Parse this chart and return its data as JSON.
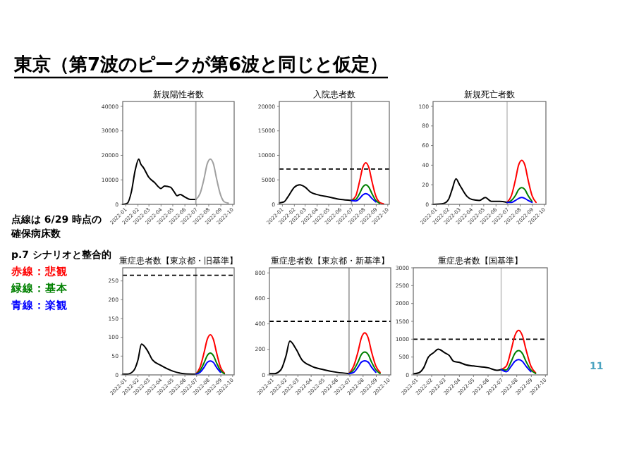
{
  "chart_data": [
    {
      "type": "other",
      "title": "東京（第7波のピークが第6波と同じと仮定）",
      "annotations": [
        "点線は 6/29 時点の",
        "確保病床数",
        "p.7 シナリオと整合的",
        "赤線：悲観",
        "緑線：基本",
        "青線：楽観",
        "11"
      ],
      "colors": [
        "#000000",
        "#000000",
        "#000000",
        "#ff0000",
        "#008000",
        "#0000ff",
        "#4aa3c0"
      ]
    },
    {
      "type": "line",
      "title": "新規陽性者数",
      "xlim": [
        "2021-12-24",
        "2022-10-05"
      ],
      "xticks": [
        "2022-01",
        "2022-02",
        "2022-03",
        "2022-04",
        "2022-05",
        "2022-06",
        "2022-07",
        "2022-08",
        "2022-09",
        "2022-10"
      ],
      "ylim": [
        0,
        42000
      ],
      "yticks": [
        0,
        10000,
        20000,
        30000,
        40000
      ],
      "ref_lines": [
        {
          "axis": "x",
          "value": "2022-06-29",
          "color": "#a0a0a0"
        }
      ],
      "series": [
        {
          "color": "#000000",
          "x": [
            "2021-12-24",
            "2022-01-05",
            "2022-01-15",
            "2022-01-25",
            "2022-02-03",
            "2022-02-08",
            "2022-02-15",
            "2022-03-01",
            "2022-03-15",
            "2022-04-01",
            "2022-04-10",
            "2022-04-25",
            "2022-05-05",
            "2022-05-12",
            "2022-05-20",
            "2022-06-01",
            "2022-06-15",
            "2022-06-29"
          ],
          "values": [
            0,
            500,
            5000,
            14000,
            18500,
            16500,
            15000,
            11000,
            9000,
            6500,
            7500,
            7000,
            5000,
            3500,
            4000,
            3000,
            2000,
            2000
          ]
        },
        {
          "color": "#a0a0a0",
          "x": [
            "2022-06-29",
            "2022-07-10",
            "2022-07-20",
            "2022-07-28",
            "2022-08-05",
            "2022-08-13",
            "2022-08-21",
            "2022-08-31",
            "2022-09-10",
            "2022-09-20"
          ],
          "values": [
            2000,
            4500,
            10500,
            16500,
            18500,
            16500,
            10500,
            4000,
            1000,
            500
          ]
        }
      ]
    },
    {
      "type": "line",
      "title": "入院患者数",
      "xlim": [
        "2021-12-24",
        "2022-10-05"
      ],
      "xticks": [
        "2022-01",
        "2022-02",
        "2022-03",
        "2022-04",
        "2022-05",
        "2022-06",
        "2022-07",
        "2022-08",
        "2022-09",
        "2022-10"
      ],
      "ylim": [
        0,
        21000
      ],
      "yticks": [
        0,
        5000,
        10000,
        15000,
        20000
      ],
      "ref_lines": [
        {
          "axis": "x",
          "value": "2022-06-29",
          "color": "#a0a0a0"
        },
        {
          "axis": "y",
          "value": 7200,
          "color": "#000000",
          "line_style": "dashed"
        }
      ],
      "series": [
        {
          "color": "#000000",
          "x": [
            "2021-12-24",
            "2022-01-05",
            "2022-01-15",
            "2022-02-01",
            "2022-02-15",
            "2022-03-01",
            "2022-03-15",
            "2022-04-01",
            "2022-05-01",
            "2022-06-01",
            "2022-06-29"
          ],
          "values": [
            300,
            500,
            1500,
            3500,
            4000,
            3500,
            2500,
            2000,
            1500,
            1000,
            800
          ]
        },
        {
          "color": "#ff0000",
          "x": [
            "2022-06-29",
            "2022-07-10",
            "2022-07-20",
            "2022-07-28",
            "2022-08-05",
            "2022-08-13",
            "2022-08-21",
            "2022-08-31",
            "2022-09-10",
            "2022-09-20"
          ],
          "values": [
            800,
            1700,
            4700,
            7500,
            8500,
            7500,
            4700,
            1700,
            400,
            100
          ]
        },
        {
          "color": "#008000",
          "x": [
            "2022-06-29",
            "2022-07-10",
            "2022-07-20",
            "2022-07-28",
            "2022-08-05",
            "2022-08-13",
            "2022-08-21",
            "2022-08-31",
            "2022-09-10"
          ],
          "values": [
            800,
            1000,
            2200,
            3500,
            4000,
            3500,
            2200,
            800,
            200
          ]
        },
        {
          "color": "#0000ff",
          "x": [
            "2022-06-29",
            "2022-07-10",
            "2022-07-20",
            "2022-07-28",
            "2022-08-05",
            "2022-08-13",
            "2022-08-21",
            "2022-08-31"
          ],
          "values": [
            800,
            700,
            1200,
            1900,
            2200,
            1900,
            1200,
            500
          ]
        }
      ]
    },
    {
      "type": "line",
      "title": "新規死亡者数",
      "xlim": [
        "2021-12-24",
        "2022-10-05"
      ],
      "xticks": [
        "2022-01",
        "2022-02",
        "2022-03",
        "2022-04",
        "2022-05",
        "2022-06",
        "2022-07",
        "2022-08",
        "2022-09",
        "2022-10"
      ],
      "ylim": [
        0,
        105
      ],
      "yticks": [
        0,
        20,
        40,
        60,
        80,
        100
      ],
      "ref_lines": [
        {
          "axis": "x",
          "value": "2022-06-29",
          "color": "#c8c8c8"
        }
      ],
      "series": [
        {
          "color": "#000000",
          "x": [
            "2021-12-24",
            "2022-01-20",
            "2022-02-01",
            "2022-02-10",
            "2022-02-20",
            "2022-03-01",
            "2022-03-20",
            "2022-04-01",
            "2022-04-20",
            "2022-05-05",
            "2022-05-20",
            "2022-06-10",
            "2022-06-29"
          ],
          "values": [
            0,
            1,
            5,
            15,
            26,
            20,
            8,
            5,
            4,
            7,
            3,
            3,
            2
          ]
        },
        {
          "color": "#ff0000",
          "x": [
            "2022-06-29",
            "2022-07-10",
            "2022-07-20",
            "2022-07-28",
            "2022-08-05",
            "2022-08-13",
            "2022-08-21",
            "2022-08-31",
            "2022-09-10"
          ],
          "values": [
            2,
            9,
            25,
            40,
            45,
            40,
            25,
            9,
            2
          ]
        },
        {
          "color": "#008000",
          "x": [
            "2022-06-29",
            "2022-07-10",
            "2022-07-20",
            "2022-07-28",
            "2022-08-05",
            "2022-08-13",
            "2022-08-21",
            "2022-08-31"
          ],
          "values": [
            2,
            4,
            9,
            15,
            17,
            15,
            9,
            3
          ]
        },
        {
          "color": "#0000ff",
          "x": [
            "2022-06-29",
            "2022-07-10",
            "2022-07-20",
            "2022-07-28",
            "2022-08-05",
            "2022-08-13",
            "2022-08-21",
            "2022-08-31"
          ],
          "values": [
            2,
            2,
            4,
            6,
            7,
            6,
            4,
            2
          ]
        }
      ]
    },
    {
      "type": "line",
      "title": "重症患者数【東京都・旧基準】",
      "xlim": [
        "2021-12-24",
        "2022-10-05"
      ],
      "xticks": [
        "2022-01",
        "2022-02",
        "2022-03",
        "2022-04",
        "2022-05",
        "2022-06",
        "2022-07",
        "2022-08",
        "2022-09",
        "2022-10"
      ],
      "ylim": [
        0,
        285
      ],
      "yticks": [
        0,
        50,
        100,
        150,
        200,
        250
      ],
      "ref_lines": [
        {
          "axis": "x",
          "value": "2022-06-29",
          "color": "#a0a0a0"
        },
        {
          "axis": "y",
          "value": 265,
          "color": "#000000",
          "line_style": "dashed"
        }
      ],
      "series": [
        {
          "color": "#000000",
          "x": [
            "2021-12-24",
            "2022-01-05",
            "2022-01-20",
            "2022-02-01",
            "2022-02-10",
            "2022-02-25",
            "2022-03-10",
            "2022-04-01",
            "2022-05-01",
            "2022-06-01",
            "2022-06-29"
          ],
          "values": [
            2,
            2,
            10,
            40,
            82,
            65,
            40,
            25,
            10,
            3,
            2
          ]
        },
        {
          "color": "#ff0000",
          "x": [
            "2022-06-29",
            "2022-07-10",
            "2022-07-20",
            "2022-07-28",
            "2022-08-05",
            "2022-08-13",
            "2022-08-21",
            "2022-08-31",
            "2022-09-10"
          ],
          "values": [
            2,
            21,
            59,
            94,
            107,
            94,
            59,
            21,
            5
          ]
        },
        {
          "color": "#008000",
          "x": [
            "2022-06-29",
            "2022-07-10",
            "2022-07-20",
            "2022-07-28",
            "2022-08-05",
            "2022-08-13",
            "2022-08-21",
            "2022-08-31",
            "2022-09-10"
          ],
          "values": [
            2,
            12,
            32,
            51,
            58,
            51,
            32,
            12,
            3
          ]
        },
        {
          "color": "#0000ff",
          "x": [
            "2022-06-29",
            "2022-07-10",
            "2022-07-20",
            "2022-07-28",
            "2022-08-05",
            "2022-08-13",
            "2022-08-21",
            "2022-08-31"
          ],
          "values": [
            2,
            7,
            20,
            33,
            37,
            33,
            20,
            7
          ]
        }
      ]
    },
    {
      "type": "line",
      "title": "重症患者数【東京都・新基準】",
      "xlim": [
        "2021-12-24",
        "2022-10-05"
      ],
      "xticks": [
        "2022-01",
        "2022-02",
        "2022-03",
        "2022-04",
        "2022-05",
        "2022-06",
        "2022-07",
        "2022-08",
        "2022-09",
        "2022-10"
      ],
      "ylim": [
        0,
        840
      ],
      "yticks": [
        0,
        200,
        400,
        600,
        800
      ],
      "ref_lines": [
        {
          "axis": "x",
          "value": "2022-06-29",
          "color": "#a0a0a0"
        },
        {
          "axis": "y",
          "value": 420,
          "color": "#000000",
          "line_style": "dashed"
        }
      ],
      "series": [
        {
          "color": "#000000",
          "x": [
            "2021-12-24",
            "2022-01-05",
            "2022-01-20",
            "2022-02-01",
            "2022-02-10",
            "2022-02-25",
            "2022-03-10",
            "2022-04-01",
            "2022-05-01",
            "2022-06-01",
            "2022-06-29"
          ],
          "values": [
            10,
            10,
            40,
            150,
            265,
            200,
            120,
            70,
            40,
            20,
            10
          ]
        },
        {
          "color": "#ff0000",
          "x": [
            "2022-06-29",
            "2022-07-10",
            "2022-07-20",
            "2022-07-28",
            "2022-08-05",
            "2022-08-13",
            "2022-08-21",
            "2022-08-31",
            "2022-09-10"
          ],
          "values": [
            10,
            70,
            180,
            290,
            330,
            290,
            180,
            70,
            20
          ]
        },
        {
          "color": "#008000",
          "x": [
            "2022-06-29",
            "2022-07-10",
            "2022-07-20",
            "2022-07-28",
            "2022-08-05",
            "2022-08-13",
            "2022-08-21",
            "2022-08-31",
            "2022-09-10"
          ],
          "values": [
            10,
            40,
            100,
            160,
            180,
            160,
            100,
            40,
            10
          ]
        },
        {
          "color": "#0000ff",
          "x": [
            "2022-06-29",
            "2022-07-10",
            "2022-07-20",
            "2022-07-28",
            "2022-08-05",
            "2022-08-13",
            "2022-08-21",
            "2022-08-31"
          ],
          "values": [
            10,
            20,
            60,
            100,
            110,
            100,
            60,
            20
          ]
        }
      ]
    },
    {
      "type": "line",
      "title": "重症患者数【国基準】",
      "xlim": [
        "2021-12-24",
        "2022-10-05"
      ],
      "xticks": [
        "2022-01",
        "2022-02",
        "2022-03",
        "2022-04",
        "2022-05",
        "2022-06",
        "2022-07",
        "2022-08",
        "2022-09",
        "2022-10"
      ],
      "ylim": [
        0,
        3000
      ],
      "yticks": [
        0,
        500,
        1000,
        1500,
        2000,
        2500,
        3000
      ],
      "ref_lines": [
        {
          "axis": "x",
          "value": "2022-06-29",
          "color": "#c8c8c8"
        },
        {
          "axis": "y",
          "value": 1000,
          "color": "#000000",
          "line_style": "dashed"
        }
      ],
      "series": [
        {
          "color": "#000000",
          "x": [
            "2021-12-24",
            "2022-01-05",
            "2022-01-15",
            "2022-01-25",
            "2022-02-05",
            "2022-02-15",
            "2022-03-01",
            "2022-03-10",
            "2022-03-20",
            "2022-04-01",
            "2022-04-15",
            "2022-05-01",
            "2022-06-01",
            "2022-06-20",
            "2022-06-29"
          ],
          "values": [
            30,
            60,
            200,
            500,
            620,
            720,
            620,
            550,
            380,
            350,
            280,
            250,
            200,
            130,
            150
          ]
        },
        {
          "color": "#ff0000",
          "x": [
            "2022-06-29",
            "2022-07-10",
            "2022-07-20",
            "2022-07-28",
            "2022-08-05",
            "2022-08-13",
            "2022-08-21",
            "2022-08-31",
            "2022-09-10"
          ],
          "values": [
            150,
            250,
            690,
            1100,
            1250,
            1100,
            690,
            250,
            60
          ]
        },
        {
          "color": "#008000",
          "x": [
            "2022-06-29",
            "2022-07-10",
            "2022-07-20",
            "2022-07-28",
            "2022-08-05",
            "2022-08-13",
            "2022-08-21",
            "2022-08-31",
            "2022-09-10"
          ],
          "values": [
            150,
            140,
            370,
            600,
            680,
            600,
            370,
            140,
            40
          ]
        },
        {
          "color": "#0000ff",
          "x": [
            "2022-06-29",
            "2022-07-10",
            "2022-07-20",
            "2022-07-28",
            "2022-08-05",
            "2022-08-13",
            "2022-08-21",
            "2022-08-31"
          ],
          "values": [
            150,
            90,
            240,
            380,
            430,
            380,
            240,
            90
          ]
        }
      ]
    }
  ]
}
